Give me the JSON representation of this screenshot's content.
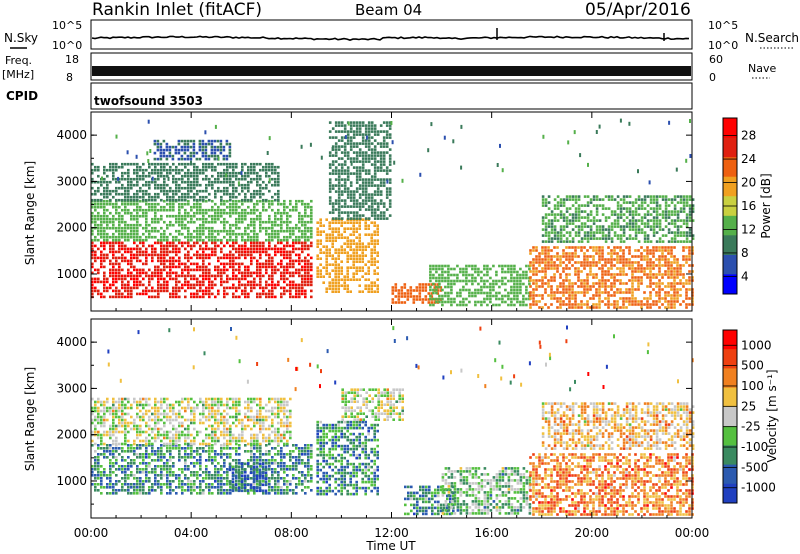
{
  "header": {
    "title": "Rankin Inlet (fitACF)",
    "beam": "Beam 04",
    "date": "05/Apr/2016"
  },
  "strips": {
    "nsky_label": "N.Sky",
    "nsky_ticks": [
      "10^5",
      "10^0"
    ],
    "nsearch_label": "N.Search",
    "nsearch_ticks": [
      "10^5",
      "10^0"
    ],
    "freq_label": "Freq.",
    "freq_unit": "[MHz]",
    "freq_ticks": [
      "18",
      "8"
    ],
    "nave_label": "Nave",
    "nave_ticks": [
      "60",
      "0"
    ],
    "cpid_label": "CPID",
    "cpid_value": "twofsound 3503"
  },
  "colors": {
    "power": [
      "#0000ff",
      "#2b4fae",
      "#3a7a5a",
      "#55b04a",
      "#c9d040",
      "#f0a020",
      "#ee6010",
      "#e02010",
      "#ff0000"
    ],
    "velocity": [
      "#ff0000",
      "#ee4010",
      "#f08020",
      "#f0c040",
      "#c8c8c8",
      "#55c040",
      "#3a8a60",
      "#2b5ab0",
      "#2040c0"
    ]
  },
  "chart_data": [
    {
      "type": "heatmap",
      "name": "power",
      "ylabel": "Slant Range [km]",
      "xlabel": "",
      "x_ticks": [
        "00:00",
        "04:00",
        "08:00",
        "12:00",
        "16:00",
        "20:00",
        "00:00"
      ],
      "xlim_hours": [
        0,
        24
      ],
      "y_ticks": [
        1000,
        2000,
        3000,
        4000
      ],
      "ylim": [
        200,
        4500
      ],
      "colorbar_label": "Power [dB]",
      "colorbar_ticks": [
        4,
        8,
        12,
        16,
        20,
        24,
        28
      ],
      "clim": [
        0,
        30
      ],
      "regions": [
        {
          "t0": 0.0,
          "t1": 8.8,
          "r0": 500,
          "r1": 1700,
          "level": 26
        },
        {
          "t0": 0.0,
          "t1": 8.8,
          "r0": 1700,
          "r1": 2600,
          "level": 12
        },
        {
          "t0": 0.0,
          "t1": 7.5,
          "r0": 2600,
          "r1": 3400,
          "level": 8
        },
        {
          "t0": 2.5,
          "t1": 5.5,
          "r0": 3500,
          "r1": 3900,
          "level": 6
        },
        {
          "t0": 9.0,
          "t1": 11.5,
          "r0": 600,
          "r1": 2200,
          "level": 18
        },
        {
          "t0": 9.5,
          "t1": 12.0,
          "r0": 2200,
          "r1": 4300,
          "level": 8
        },
        {
          "t0": 12.0,
          "t1": 14.0,
          "r0": 400,
          "r1": 800,
          "level": 22
        },
        {
          "t0": 13.5,
          "t1": 17.5,
          "r0": 300,
          "r1": 1200,
          "level": 12
        },
        {
          "t0": 17.5,
          "t1": 24.0,
          "r0": 300,
          "r1": 1600,
          "level": 20
        },
        {
          "t0": 18.0,
          "t1": 24.0,
          "r0": 1700,
          "r1": 2700,
          "level": 10
        }
      ]
    },
    {
      "type": "heatmap",
      "name": "velocity",
      "ylabel": "Slant Range [km]",
      "xlabel": "Time UT",
      "x_ticks": [
        "00:00",
        "04:00",
        "08:00",
        "12:00",
        "16:00",
        "20:00",
        "00:00"
      ],
      "xlim_hours": [
        0,
        24
      ],
      "y_ticks": [
        1000,
        2000,
        3000,
        4000
      ],
      "ylim": [
        200,
        4500
      ],
      "colorbar_label": "Velocity [m s⁻¹]",
      "colorbar_ticks": [
        "1000",
        "500",
        "100",
        "25",
        "-25",
        "-100",
        "-500",
        "-1000"
      ],
      "regions": [
        {
          "t0": 0.0,
          "t1": 8.8,
          "r0": 700,
          "r1": 1800,
          "level": 6
        },
        {
          "t0": 0.0,
          "t1": 8.0,
          "r0": 1800,
          "r1": 2800,
          "level": 4
        },
        {
          "t0": 5.5,
          "t1": 7.0,
          "r0": 800,
          "r1": 1400,
          "level": 7
        },
        {
          "t0": 9.0,
          "t1": 11.5,
          "r0": 700,
          "r1": 2300,
          "level": 6
        },
        {
          "t0": 10.0,
          "t1": 12.5,
          "r0": 2300,
          "r1": 3000,
          "level": 4
        },
        {
          "t0": 12.5,
          "t1": 14.5,
          "r0": 300,
          "r1": 900,
          "level": 6
        },
        {
          "t0": 14.0,
          "t1": 17.5,
          "r0": 300,
          "r1": 1300,
          "level": 5
        },
        {
          "t0": 17.5,
          "t1": 24.0,
          "r0": 300,
          "r1": 1600,
          "level": 2
        },
        {
          "t0": 18.0,
          "t1": 24.0,
          "r0": 1700,
          "r1": 2700,
          "level": 3
        }
      ]
    }
  ]
}
